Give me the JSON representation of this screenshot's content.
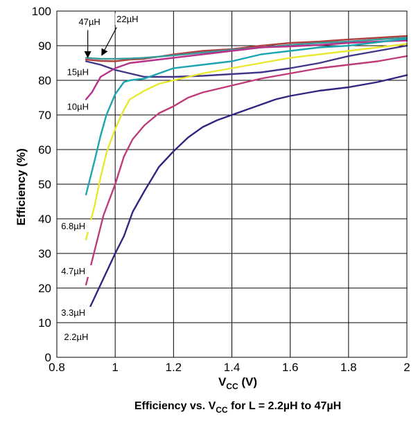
{
  "chart_data": {
    "type": "line",
    "title": {
      "main": "Efficiency vs. V",
      "sub": "CC",
      "rest": " for L = 2.2µH to 47µH"
    },
    "xlabel": {
      "main": "V",
      "sub": "CC",
      "rest": " (V)"
    },
    "ylabel": "Efficiency (%)",
    "xlim": [
      0.8,
      2
    ],
    "ylim": [
      0,
      100
    ],
    "xticks": [
      "0.8",
      "1",
      "1.2",
      "1.4",
      "1.6",
      "1.8",
      "2"
    ],
    "yticks": [
      "0",
      "10",
      "20",
      "30",
      "40",
      "50",
      "60",
      "70",
      "80",
      "90",
      "100"
    ],
    "grid": true,
    "series": [
      {
        "name": "47µH",
        "color": "#b04040",
        "x": [
          0.9,
          0.95,
          1.0,
          1.05,
          1.1,
          1.2,
          1.3,
          1.4,
          1.5,
          1.6,
          1.7,
          1.8,
          1.9,
          2.0
        ],
        "y": [
          86.0,
          85.6,
          85.5,
          86.0,
          86.2,
          87.5,
          88.5,
          89.0,
          90.0,
          90.8,
          91.2,
          91.8,
          92.3,
          92.8
        ]
      },
      {
        "name": "22µH",
        "color": "#3a9a9a",
        "x": [
          0.9,
          0.95,
          1.0,
          1.05,
          1.1,
          1.2,
          1.3,
          1.4,
          1.5,
          1.6,
          1.7,
          1.8,
          1.9,
          2.0
        ],
        "y": [
          86.5,
          86.2,
          86.2,
          86.3,
          86.5,
          87.2,
          88.0,
          88.8,
          89.5,
          90.2,
          90.8,
          91.2,
          91.8,
          92.3
        ]
      },
      {
        "name": "15µH",
        "color": "#3f3688",
        "x": [
          0.9,
          0.95,
          1.0,
          1.05,
          1.1,
          1.2,
          1.3,
          1.4,
          1.5,
          1.6,
          1.7,
          1.8,
          1.9,
          2.0
        ],
        "y": [
          85.5,
          84.5,
          83.0,
          82.0,
          81.0,
          81.0,
          81.3,
          81.8,
          82.3,
          83.5,
          85.0,
          87.0,
          88.5,
          90.0
        ]
      },
      {
        "name": "10µH",
        "color": "#b8308a",
        "x": [
          0.9,
          0.92,
          0.95,
          1.0,
          1.05,
          1.1,
          1.2,
          1.3,
          1.4,
          1.5,
          1.6,
          1.7,
          1.8,
          1.9,
          2.0
        ],
        "y": [
          74.5,
          76.5,
          81.0,
          83.5,
          85.0,
          85.5,
          86.5,
          87.5,
          88.5,
          89.5,
          89.8,
          90.2,
          90.8,
          91.2,
          91.5
        ]
      },
      {
        "name": "6.8µH",
        "color": "#1aa5b0",
        "x": [
          0.9,
          0.93,
          0.95,
          0.97,
          1.0,
          1.03,
          1.05,
          1.1,
          1.2,
          1.3,
          1.4,
          1.5,
          1.6,
          1.7,
          1.8,
          1.9,
          2.0
        ],
        "y": [
          47.0,
          57.0,
          64.0,
          70.0,
          76.0,
          79.5,
          80.0,
          80.5,
          83.5,
          84.5,
          85.5,
          87.5,
          88.5,
          89.5,
          90.0,
          91.0,
          92.0
        ]
      },
      {
        "name": "4.7µH",
        "color": "#e8e830",
        "x": [
          0.9,
          0.93,
          0.95,
          0.97,
          1.0,
          1.03,
          1.05,
          1.1,
          1.15,
          1.2,
          1.3,
          1.4,
          1.5,
          1.6,
          1.7,
          1.8,
          1.9,
          2.0
        ],
        "y": [
          34.0,
          44.0,
          52.0,
          59.0,
          66.0,
          71.5,
          74.5,
          77.0,
          79.0,
          80.0,
          82.0,
          83.5,
          85.0,
          86.5,
          87.5,
          88.5,
          89.5,
          90.5
        ]
      },
      {
        "name": "3.3µH",
        "color": "#c03a7a",
        "x": [
          0.9,
          0.93,
          0.96,
          1.0,
          1.03,
          1.06,
          1.1,
          1.15,
          1.2,
          1.25,
          1.3,
          1.35,
          1.4,
          1.5,
          1.6,
          1.7,
          1.8,
          1.9,
          2.0
        ],
        "y": [
          21.0,
          31.0,
          41.0,
          50.0,
          58.0,
          63.0,
          67.0,
          70.5,
          72.5,
          75.0,
          76.5,
          77.5,
          78.5,
          80.5,
          82.0,
          83.5,
          84.5,
          85.5,
          87.0
        ]
      },
      {
        "name": "2.2µH",
        "color": "#2e2680",
        "x": [
          0.9,
          0.95,
          1.0,
          1.03,
          1.06,
          1.1,
          1.15,
          1.2,
          1.25,
          1.3,
          1.35,
          1.4,
          1.45,
          1.5,
          1.55,
          1.6,
          1.7,
          1.8,
          1.9,
          2.0
        ],
        "y": [
          12.0,
          21.0,
          30.0,
          35.0,
          42.0,
          48.0,
          55.0,
          59.5,
          63.5,
          66.5,
          68.5,
          70.0,
          71.5,
          73.0,
          74.5,
          75.5,
          77.0,
          78.0,
          79.5,
          81.5
        ]
      }
    ],
    "annotations": [
      {
        "text": "47µH",
        "x": 0.87,
        "y": 96.0
      },
      {
        "text": "22µH",
        "x": 1.0,
        "y": 96.8
      },
      {
        "text": "15µH",
        "x": 0.83,
        "y": 81.5
      },
      {
        "text": "10µH",
        "x": 0.83,
        "y": 71.5
      },
      {
        "text": "6.8µH",
        "x": 0.81,
        "y": 37.0
      },
      {
        "text": "4.7µH",
        "x": 0.81,
        "y": 24.0
      },
      {
        "text": "3.3µH",
        "x": 0.81,
        "y": 12.0
      },
      {
        "text": "2.2µH",
        "x": 0.82,
        "y": 5.0
      }
    ]
  }
}
